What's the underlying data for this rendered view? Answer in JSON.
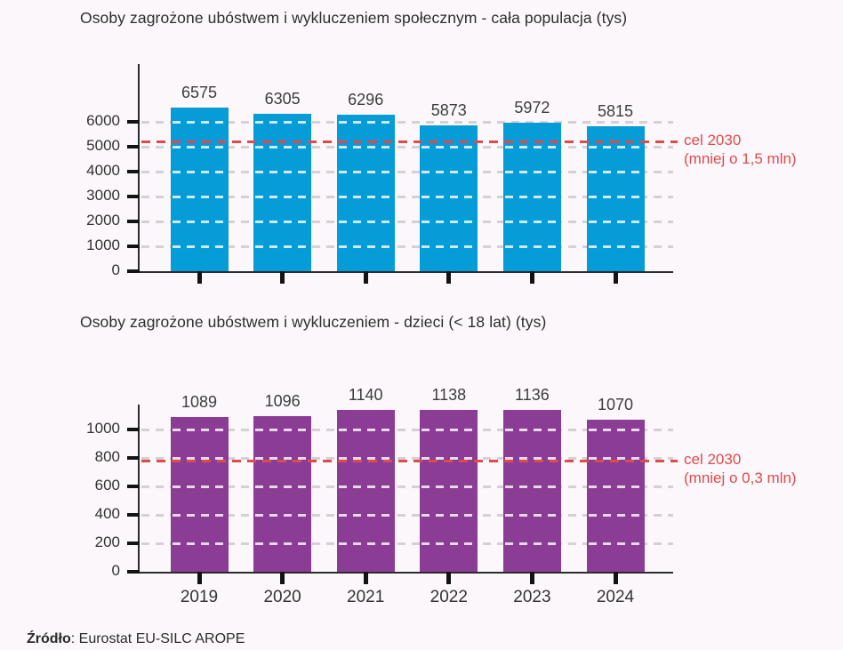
{
  "source": {
    "label": "Źródło",
    "text": ": Eurostat EU-SILC AROPE"
  },
  "colors": {
    "background": "#fcf7fa",
    "axis": "#2b2b2b",
    "grid_dash": "#a7a0aa",
    "target_red": "#df4b4b",
    "population_bar_blue": "#069cd7",
    "children_bar_purple": "#8b3d96",
    "label_text": "#3d3d3d"
  },
  "chart_data": [
    {
      "type": "bar",
      "title": "Osoby zagrożone ubóstwem i wykluczeniem społecznym - cała populacja (tys)",
      "categories": [
        "2019",
        "2020",
        "2021",
        "2022",
        "2023",
        "2024"
      ],
      "values": [
        6575,
        6305,
        6296,
        5873,
        5972,
        5815
      ],
      "bar_color": "#069cd7",
      "y_ticks": [
        0,
        1000,
        2000,
        3000,
        4000,
        5000,
        6000
      ],
      "ylim": [
        0,
        8300
      ],
      "grid": "dashed-horizontal",
      "data_labels": true,
      "x_labels_visible": false,
      "legend": "none",
      "target_line": {
        "value": 5200,
        "color": "#df4b4b",
        "label": [
          "cel 2030",
          "(mniej o 1,5 mln)"
        ]
      }
    },
    {
      "type": "bar",
      "title": "Osoby zagrożone ubóstwem i wykluczeniem - dzieci (< 18 lat) (tys)",
      "categories": [
        "2019",
        "2020",
        "2021",
        "2022",
        "2023",
        "2024"
      ],
      "values": [
        1089,
        1096,
        1140,
        1138,
        1136,
        1070
      ],
      "bar_color": "#8b3d96",
      "y_ticks": [
        0,
        200,
        400,
        600,
        800,
        1000
      ],
      "ylim": [
        0,
        1175
      ],
      "grid": "dashed-horizontal",
      "data_labels": true,
      "x_labels_visible": true,
      "legend": "none",
      "target_line": {
        "value": 780,
        "color": "#df4b4b",
        "label": [
          "cel 2030",
          "(mniej o 0,3 mln)"
        ]
      }
    }
  ]
}
